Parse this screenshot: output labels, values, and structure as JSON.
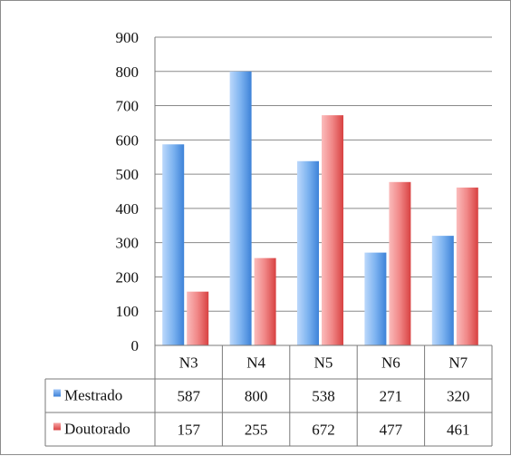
{
  "chart_data": {
    "type": "bar",
    "title": "",
    "xlabel": "",
    "ylabel": "",
    "categories": [
      "N3",
      "N4",
      "N5",
      "N6",
      "N7"
    ],
    "series": [
      {
        "name": "Mestrado",
        "values": [
          587,
          800,
          538,
          271,
          320
        ],
        "color": "#4a8fe0"
      },
      {
        "name": "Doutorado",
        "values": [
          157,
          255,
          672,
          477,
          461
        ],
        "color": "#e04848"
      }
    ],
    "ylim": [
      0,
      900
    ],
    "yticks": [
      "0",
      "100",
      "200",
      "300",
      "400",
      "500",
      "600",
      "700",
      "800",
      "900"
    ],
    "grid": true,
    "legend": "data-table",
    "data_table": true
  }
}
